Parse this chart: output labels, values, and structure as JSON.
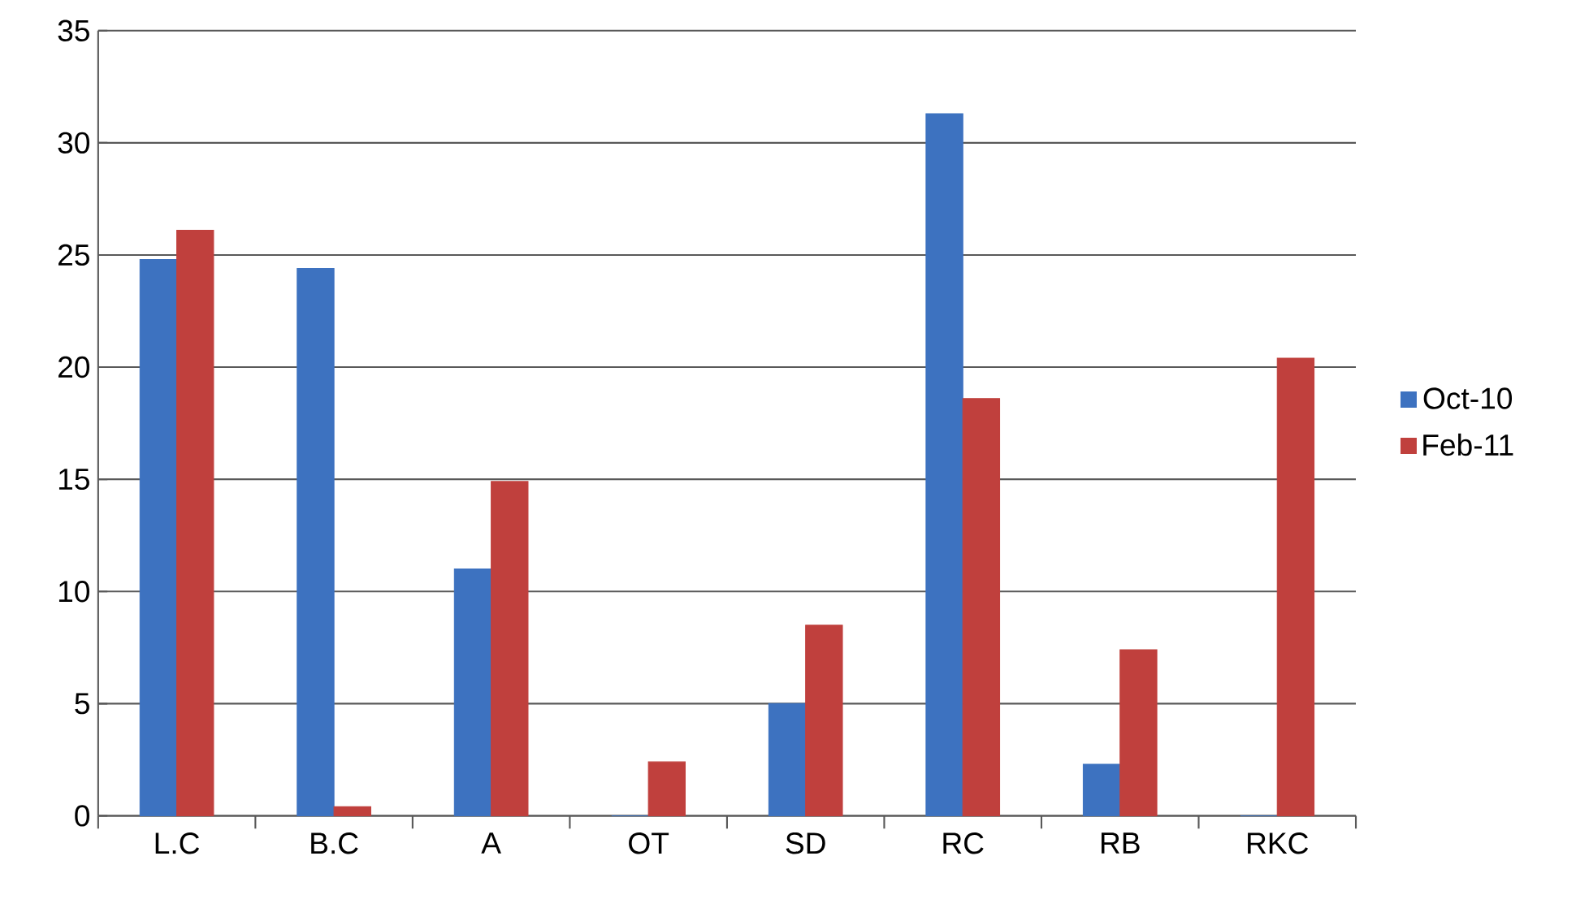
{
  "chart_data": {
    "type": "bar",
    "categories": [
      "L.C",
      "B.C",
      "A",
      "OT",
      "SD",
      "RC",
      "RB",
      "RKC"
    ],
    "series": [
      {
        "name": "Oct-10",
        "color": "#3d72c0",
        "values": [
          24.8,
          24.4,
          11,
          0,
          5,
          31.3,
          2.3,
          0
        ]
      },
      {
        "name": "Feb-11",
        "color": "#c0403d",
        "values": [
          26.1,
          0.4,
          14.9,
          2.4,
          8.5,
          18.6,
          7.4,
          20.4
        ]
      }
    ],
    "ylim": [
      0,
      35
    ],
    "yticks": [
      0,
      5,
      10,
      15,
      20,
      25,
      30,
      35
    ],
    "grid": "y",
    "legend": "right"
  }
}
